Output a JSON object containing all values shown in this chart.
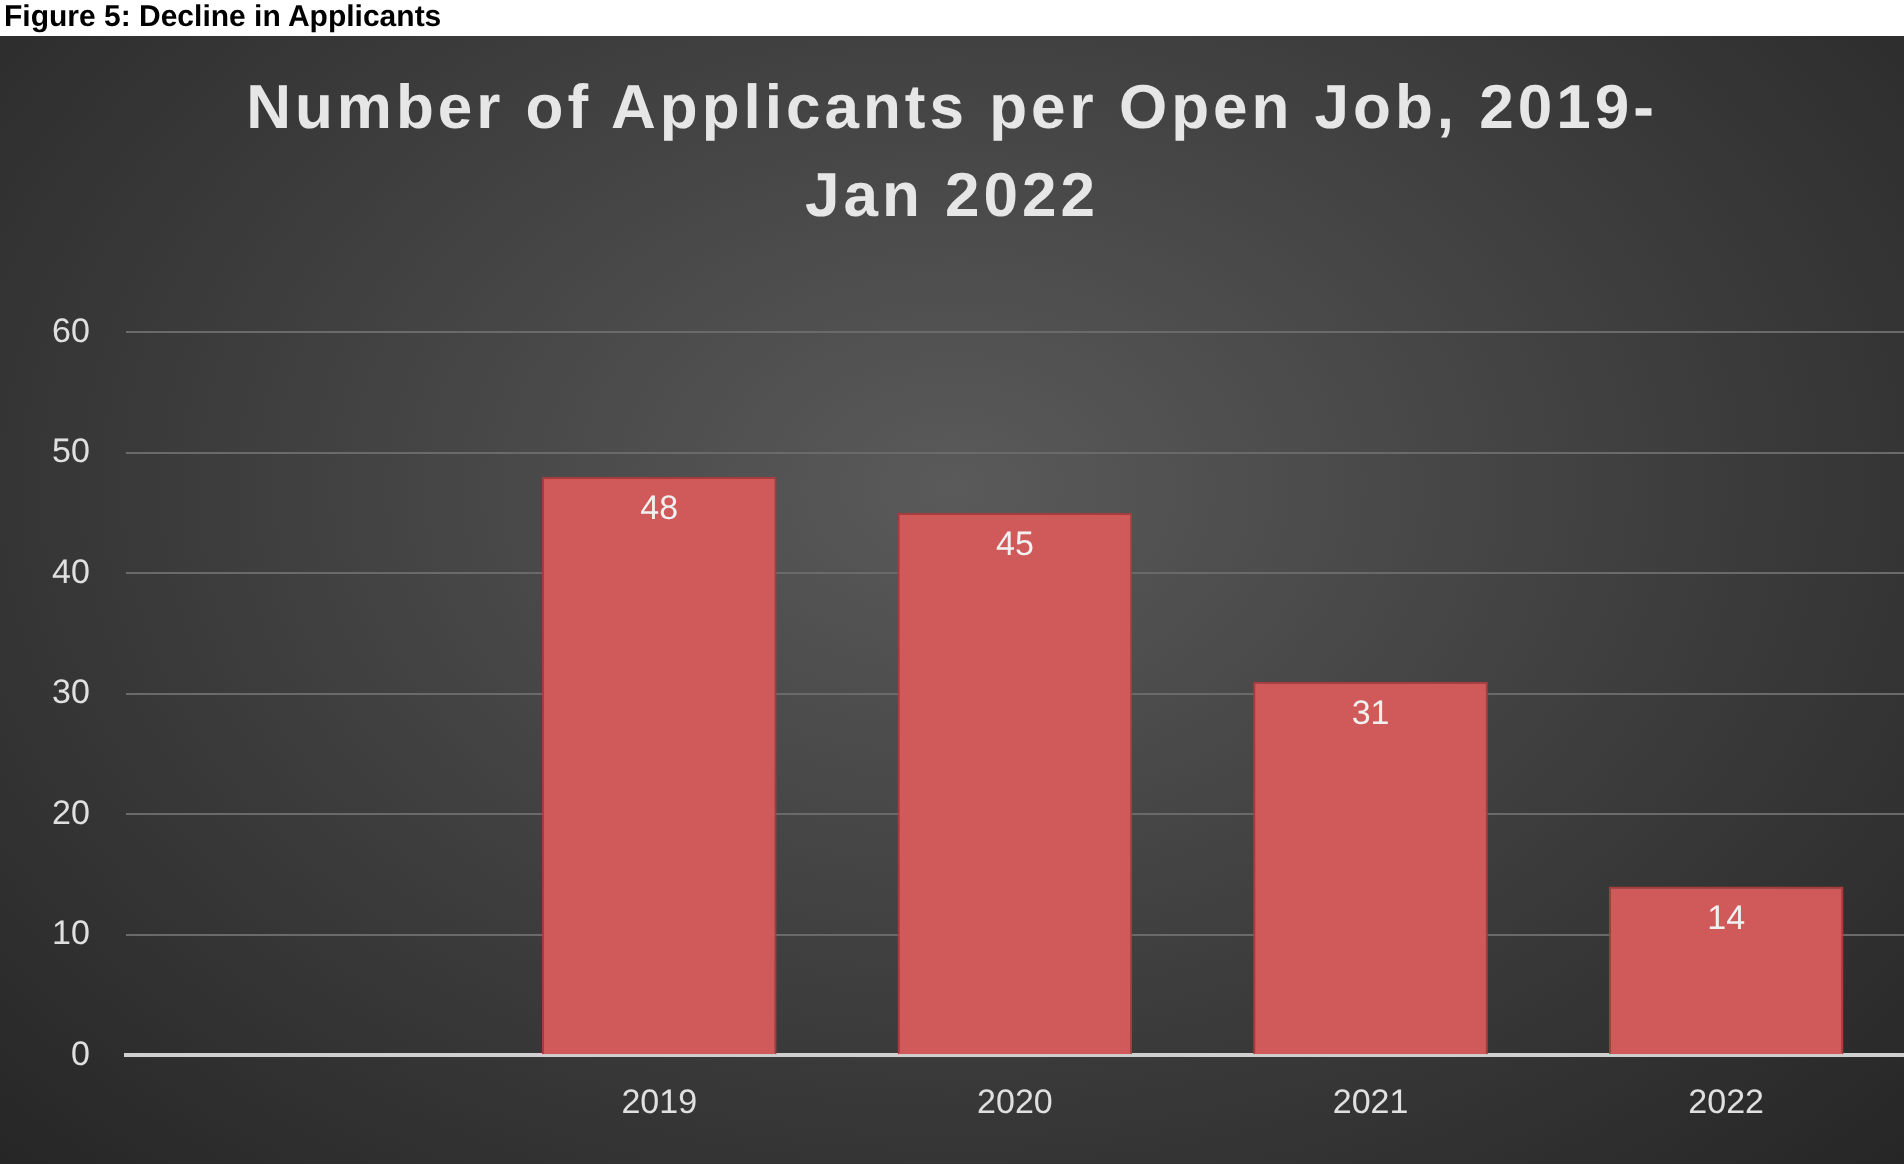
{
  "chart_data": {
    "type": "bar",
    "title": "Number of Applicants per Open Job, 2019-Jan 2022",
    "annotations": [
      "Figure 5: Decline in Applicants"
    ],
    "categories": [
      null,
      "2019",
      "2020",
      "2021",
      "2022"
    ],
    "values": [
      null,
      48,
      45,
      31,
      14
    ],
    "color": "#d05a5a",
    "ylim": [
      0,
      60
    ],
    "yticks": [
      0,
      10,
      20,
      30,
      40,
      50,
      60
    ],
    "grid": "y",
    "data_labels": true,
    "legend": false
  }
}
